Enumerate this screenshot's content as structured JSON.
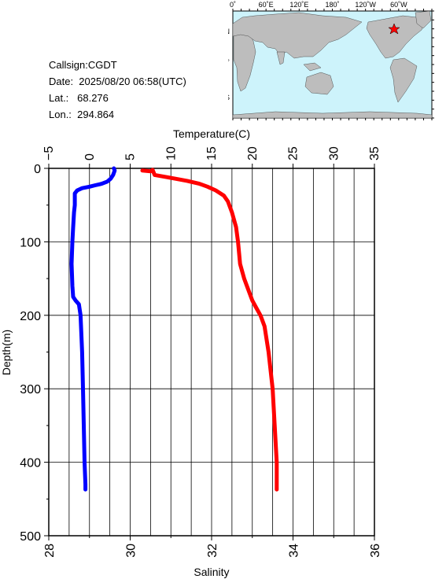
{
  "info": {
    "callsign": "Callsign:CGDT",
    "date": "Date:  2025/08/20 06:58(UTC)",
    "lat": "Lat.:   68.276",
    "lon": "Lon.:  294.864"
  },
  "map": {
    "top_labels": [
      "0˚",
      "60˚E",
      "120˚E",
      "180˚",
      "120˚W",
      "60˚W"
    ],
    "side_labels": [
      "60˚N",
      "0˚",
      "60˚S"
    ],
    "station_marker": "red-star",
    "colors": {
      "ocean": "#cdf3fb",
      "land": "#bdbdbd",
      "marker": "#ff0000"
    }
  },
  "chart_data": {
    "type": "line",
    "title": "",
    "ylabel": "Depth(m)",
    "ylim": [
      0,
      500
    ],
    "y_ticks": [
      "0",
      "100",
      "200",
      "300",
      "400",
      "500"
    ],
    "top_axis": {
      "label": "Temperature(C)",
      "range": [
        -5,
        35
      ],
      "ticks": [
        "−5",
        "0",
        "5",
        "10",
        "15",
        "20",
        "25",
        "30",
        "35"
      ]
    },
    "bottom_axis": {
      "label": "Salinity",
      "range": [
        28,
        36
      ],
      "ticks": [
        "28",
        "30",
        "32",
        "34",
        "36"
      ]
    },
    "series": [
      {
        "axis": "temperature",
        "color": "#0000ff",
        "points": [
          [
            3.0,
            0
          ],
          [
            3.1,
            3
          ],
          [
            3.0,
            6
          ],
          [
            2.9,
            9
          ],
          [
            2.6,
            14
          ],
          [
            2.2,
            18
          ],
          [
            1.5,
            21
          ],
          [
            0.7,
            23
          ],
          [
            0.0,
            25
          ],
          [
            -0.9,
            27
          ],
          [
            -1.5,
            30
          ],
          [
            -1.8,
            34
          ],
          [
            -1.8,
            40
          ],
          [
            -1.8,
            50
          ],
          [
            -1.9,
            60
          ],
          [
            -2.0,
            80
          ],
          [
            -2.1,
            100
          ],
          [
            -2.2,
            130
          ],
          [
            -2.1,
            160
          ],
          [
            -2.0,
            175
          ],
          [
            -1.7,
            180
          ],
          [
            -1.3,
            185
          ],
          [
            -1.1,
            200
          ],
          [
            -0.9,
            250
          ],
          [
            -0.8,
            300
          ],
          [
            -0.7,
            350
          ],
          [
            -0.6,
            400
          ],
          [
            -0.5,
            430
          ],
          [
            -0.5,
            437
          ]
        ]
      },
      {
        "axis": "salinity",
        "color": "#ff0000",
        "points": [
          [
            30.3,
            3
          ],
          [
            30.5,
            4
          ],
          [
            30.55,
            2
          ],
          [
            30.6,
            9
          ],
          [
            30.9,
            12
          ],
          [
            31.1,
            14
          ],
          [
            31.4,
            17
          ],
          [
            31.7,
            21
          ],
          [
            31.9,
            25
          ],
          [
            32.1,
            30
          ],
          [
            32.3,
            37
          ],
          [
            32.4,
            45
          ],
          [
            32.5,
            60
          ],
          [
            32.6,
            80
          ],
          [
            32.65,
            100
          ],
          [
            32.7,
            130
          ],
          [
            32.8,
            150
          ],
          [
            32.9,
            165
          ],
          [
            33.0,
            180
          ],
          [
            33.1,
            190
          ],
          [
            33.2,
            200
          ],
          [
            33.3,
            215
          ],
          [
            33.4,
            250
          ],
          [
            33.5,
            300
          ],
          [
            33.55,
            350
          ],
          [
            33.6,
            400
          ],
          [
            33.6,
            437
          ]
        ]
      }
    ]
  }
}
